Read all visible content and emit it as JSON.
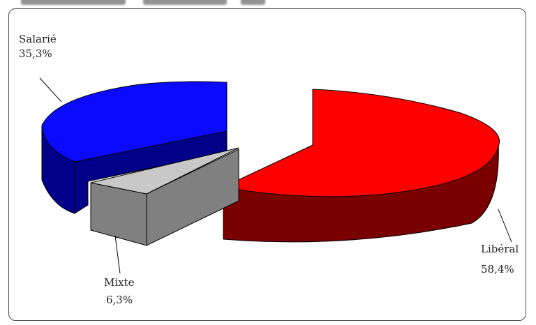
{
  "chart_data": {
    "type": "pie",
    "style": "3d-exploded",
    "slices": [
      {
        "label": "Libéral",
        "value_text": "58,4%",
        "value": 58.4,
        "color": "#ff0000",
        "side_color": "#7a0000"
      },
      {
        "label": "Salarié",
        "value_text": "35,3%",
        "value": 35.3,
        "color": "#0a0aff",
        "side_color": "#000088"
      },
      {
        "label": "Mixte",
        "value_text": "6,3%",
        "value": 6.3,
        "color": "#c8c8c8",
        "side_color": "#808080"
      }
    ]
  }
}
